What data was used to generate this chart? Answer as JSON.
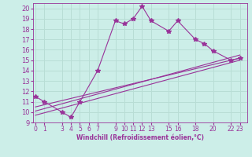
{
  "bg_color": "#cceee8",
  "grid_color": "#b8ddd5",
  "line_color": "#993399",
  "marker_style": "*",
  "marker_size": 4,
  "line_width": 0.8,
  "xlabel": "Windchill (Refroidissement éolien,°C)",
  "ylabel_ticks": [
    9,
    10,
    11,
    12,
    13,
    14,
    15,
    16,
    17,
    18,
    19,
    20
  ],
  "xtick_positions": [
    0,
    1,
    3,
    4,
    5,
    6,
    7,
    9,
    10,
    11,
    12,
    13,
    15,
    16,
    18,
    20,
    22,
    23
  ],
  "xtick_labels": [
    "0",
    "1",
    "3",
    "4",
    "5",
    "6",
    "7",
    "9",
    "10",
    "11",
    "12",
    "13",
    "15",
    "16",
    "18",
    "20",
    "22",
    "23"
  ],
  "xlim": [
    -0.3,
    23.8
  ],
  "ylim": [
    9,
    20.5
  ],
  "main_data_x": [
    0,
    1,
    3,
    4,
    5,
    7,
    9,
    10,
    11,
    12,
    13,
    15,
    16,
    18,
    19,
    20,
    22,
    23
  ],
  "main_data_y": [
    11.5,
    11.0,
    10.0,
    9.5,
    11.0,
    14.0,
    18.8,
    18.5,
    19.0,
    20.2,
    18.8,
    17.8,
    18.8,
    17.0,
    16.6,
    15.9,
    15.0,
    15.2
  ],
  "trend1_x": [
    0,
    23
  ],
  "trend1_y": [
    10.1,
    15.5
  ],
  "trend2_x": [
    0,
    23
  ],
  "trend2_y": [
    10.5,
    15.2
  ],
  "trend3_x": [
    0,
    23
  ],
  "trend3_y": [
    9.7,
    15.0
  ]
}
